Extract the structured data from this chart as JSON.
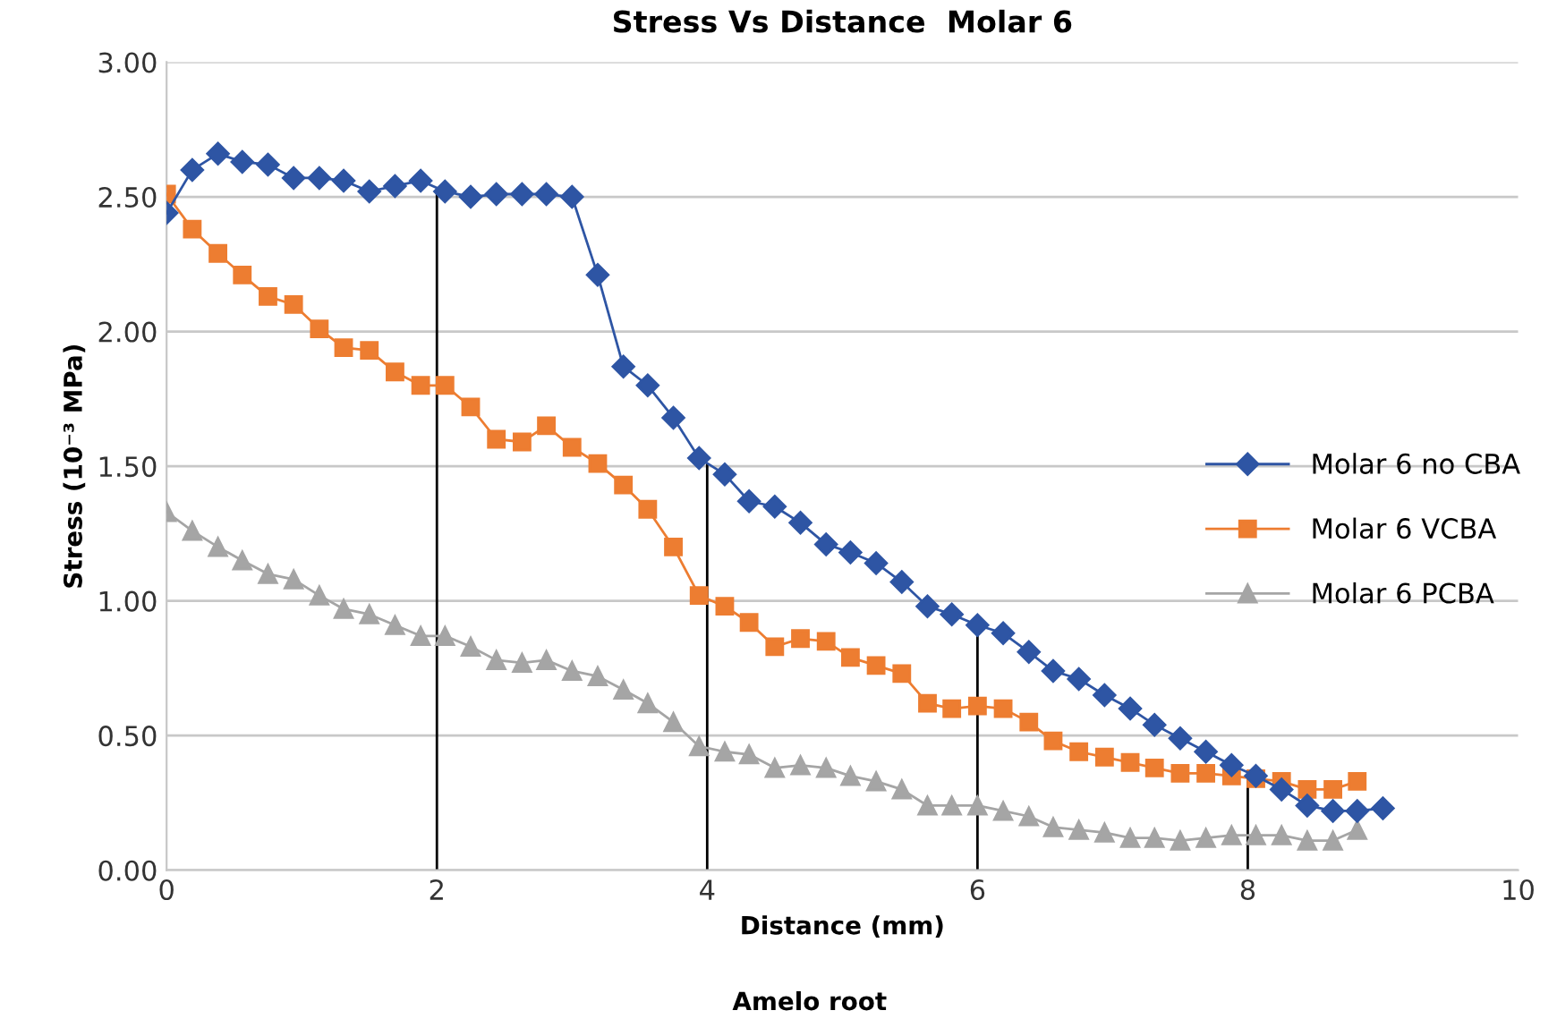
{
  "chart_data": {
    "type": "line",
    "title": "Stress Vs Distance  Molar 6",
    "xlabel": "Distance (mm)",
    "ylabel": "Stress (10⁻³ MPa)",
    "annotations": [
      "Amelo root"
    ],
    "x": [
      0,
      0.19,
      0.38,
      0.56,
      0.75,
      0.94,
      1.13,
      1.31,
      1.5,
      1.69,
      1.88,
      2.06,
      2.25,
      2.44,
      2.63,
      2.81,
      3,
      3.19,
      3.38,
      3.56,
      3.75,
      3.94,
      4.13,
      4.31,
      4.5,
      4.69,
      4.88,
      5.06,
      5.25,
      5.44,
      5.63,
      5.81,
      6,
      6.19,
      6.38,
      6.56,
      6.75,
      6.94,
      7.13,
      7.31,
      7.5,
      7.69,
      7.88,
      8.06,
      8.25,
      8.44,
      8.63,
      8.81,
      9
    ],
    "series": [
      {
        "name": "Molar 6 no CBA",
        "color": "#2e55a4",
        "marker": "diamond",
        "values": [
          2.44,
          2.6,
          2.66,
          2.63,
          2.62,
          2.57,
          2.57,
          2.56,
          2.52,
          2.54,
          2.56,
          2.52,
          2.5,
          2.51,
          2.51,
          2.51,
          2.5,
          2.21,
          1.87,
          1.8,
          1.68,
          1.53,
          1.47,
          1.37,
          1.35,
          1.29,
          1.21,
          1.18,
          1.14,
          1.07,
          0.98,
          0.95,
          0.91,
          0.88,
          0.81,
          0.74,
          0.71,
          0.65,
          0.6,
          0.54,
          0.49,
          0.44,
          0.39,
          0.35,
          0.3,
          0.24,
          0.22,
          0.22,
          0.23
        ]
      },
      {
        "name": "Molar 6 VCBA",
        "color": "#ed7d31",
        "marker": "square",
        "x": [
          0,
          0.19,
          0.38,
          0.56,
          0.75,
          0.94,
          1.13,
          1.31,
          1.5,
          1.69,
          1.88,
          2.06,
          2.25,
          2.44,
          2.63,
          2.81,
          3,
          3.19,
          3.38,
          3.56,
          3.75,
          3.94,
          4.13,
          4.31,
          4.5,
          4.69,
          4.88,
          5.06,
          5.25,
          5.44,
          5.63,
          5.81,
          6,
          6.19,
          6.38,
          6.56,
          6.75,
          6.94,
          7.13,
          7.31,
          7.5,
          7.69,
          7.88,
          8.06,
          8.25,
          8.44,
          8.63,
          8.81
        ],
        "values": [
          2.51,
          2.38,
          2.29,
          2.21,
          2.13,
          2.1,
          2.01,
          1.94,
          1.93,
          1.85,
          1.8,
          1.8,
          1.72,
          1.6,
          1.59,
          1.65,
          1.57,
          1.51,
          1.43,
          1.34,
          1.2,
          1.02,
          0.98,
          0.92,
          0.83,
          0.86,
          0.85,
          0.79,
          0.76,
          0.73,
          0.62,
          0.6,
          0.61,
          0.6,
          0.55,
          0.48,
          0.44,
          0.42,
          0.4,
          0.38,
          0.36,
          0.36,
          0.35,
          0.34,
          0.33,
          0.3,
          0.3,
          0.33
        ]
      },
      {
        "name": "Molar 6 PCBA",
        "color": "#a5a5a5",
        "marker": "triangle",
        "x": [
          0,
          0.19,
          0.38,
          0.56,
          0.75,
          0.94,
          1.13,
          1.31,
          1.5,
          1.69,
          1.88,
          2.06,
          2.25,
          2.44,
          2.63,
          2.81,
          3,
          3.19,
          3.38,
          3.56,
          3.75,
          3.94,
          4.13,
          4.31,
          4.5,
          4.69,
          4.88,
          5.06,
          5.25,
          5.44,
          5.63,
          5.81,
          6,
          6.19,
          6.38,
          6.56,
          6.75,
          6.94,
          7.13,
          7.31,
          7.5,
          7.69,
          7.88,
          8.06,
          8.25,
          8.44,
          8.63,
          8.81
        ],
        "values": [
          1.33,
          1.26,
          1.2,
          1.15,
          1.1,
          1.08,
          1.02,
          0.97,
          0.95,
          0.91,
          0.87,
          0.87,
          0.83,
          0.78,
          0.77,
          0.78,
          0.74,
          0.72,
          0.67,
          0.62,
          0.55,
          0.46,
          0.44,
          0.43,
          0.38,
          0.39,
          0.38,
          0.35,
          0.33,
          0.3,
          0.24,
          0.24,
          0.24,
          0.22,
          0.2,
          0.16,
          0.15,
          0.14,
          0.12,
          0.12,
          0.11,
          0.12,
          0.13,
          0.13,
          0.13,
          0.11,
          0.11,
          0.15
        ]
      }
    ],
    "ref_lines": [
      {
        "axis": "x",
        "value": 2,
        "color": "#000000"
      },
      {
        "axis": "x",
        "value": 4,
        "color": "#000000"
      },
      {
        "axis": "x",
        "value": 6,
        "color": "#000000"
      },
      {
        "axis": "x",
        "value": 8,
        "color": "#000000"
      }
    ],
    "xlim": [
      0,
      10
    ],
    "xticks": [
      0,
      2,
      4,
      6,
      8,
      10
    ],
    "ylim": [
      0,
      3
    ],
    "yticks": [
      {
        "value": 0,
        "label": "0.00"
      },
      {
        "value": 0.5,
        "label": "0.50"
      },
      {
        "value": 1,
        "label": "1.00"
      },
      {
        "value": 1.5,
        "label": "1.50"
      },
      {
        "value": 2,
        "label": "2.00"
      },
      {
        "value": 2.5,
        "label": "2.50"
      },
      {
        "value": 3,
        "label": "3.00"
      }
    ],
    "grid": "y",
    "legend": "right",
    "line_style": "solid"
  }
}
